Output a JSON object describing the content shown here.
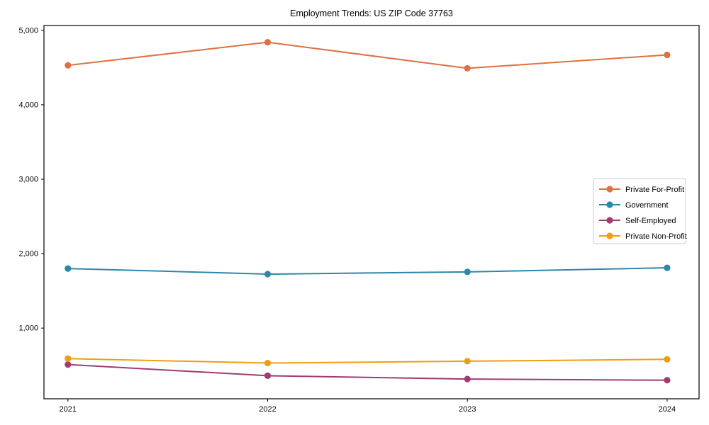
{
  "chart_data": {
    "type": "line",
    "title": "Employment Trends: US ZIP Code 37763",
    "xlabel": "",
    "ylabel": "",
    "x": [
      2021,
      2022,
      2023,
      2024
    ],
    "x_tick_labels": [
      "2021",
      "2022",
      "2023",
      "2024"
    ],
    "y_tick_labels": [
      "1,000",
      "2,000",
      "3,000",
      "4,000",
      "5,000"
    ],
    "yticks": [
      1000,
      2000,
      3000,
      4000,
      5000
    ],
    "ylim": [
      50,
      5065
    ],
    "xlim": [
      2020.88,
      2024.16
    ],
    "grid": false,
    "legend_position": "right-middle",
    "series": [
      {
        "name": "Private For-Profit",
        "color": "#df7042",
        "values": [
          4530,
          4840,
          4490,
          4670
        ]
      },
      {
        "name": "Government",
        "color": "#2e87a8",
        "values": [
          1800,
          1725,
          1755,
          1810
        ]
      },
      {
        "name": "Self-Employed",
        "color": "#a13a71",
        "values": [
          510,
          360,
          315,
          300
        ]
      },
      {
        "name": "Private Non-Profit",
        "color": "#f09d12",
        "values": [
          590,
          530,
          555,
          580
        ]
      }
    ],
    "plot_bg_color": "#ffffff",
    "spine_color": "#000000"
  }
}
